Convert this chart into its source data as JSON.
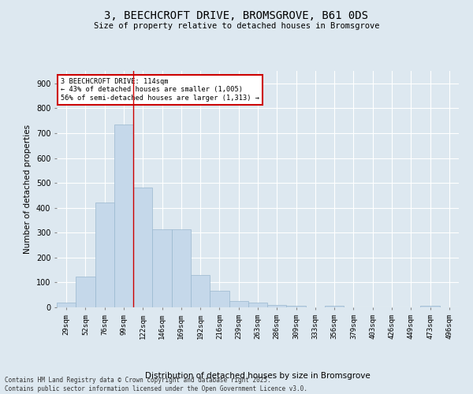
{
  "title_line1": "3, BEECHCROFT DRIVE, BROMSGROVE, B61 0DS",
  "title_line2": "Size of property relative to detached houses in Bromsgrove",
  "xlabel": "Distribution of detached houses by size in Bromsgrove",
  "ylabel": "Number of detached properties",
  "bar_color": "#c5d8ea",
  "bar_edge_color": "#9ab8cf",
  "bg_color": "#dde8f0",
  "fig_color": "#dde8f0",
  "grid_color": "#ffffff",
  "categories": [
    "29sqm",
    "52sqm",
    "76sqm",
    "99sqm",
    "122sqm",
    "146sqm",
    "169sqm",
    "192sqm",
    "216sqm",
    "239sqm",
    "263sqm",
    "286sqm",
    "309sqm",
    "333sqm",
    "356sqm",
    "379sqm",
    "403sqm",
    "426sqm",
    "449sqm",
    "473sqm",
    "496sqm"
  ],
  "values": [
    18,
    122,
    420,
    735,
    480,
    315,
    315,
    130,
    65,
    25,
    18,
    8,
    5,
    0,
    5,
    0,
    0,
    0,
    0,
    5,
    0
  ],
  "ylim": [
    0,
    950
  ],
  "yticks": [
    0,
    100,
    200,
    300,
    400,
    500,
    600,
    700,
    800,
    900
  ],
  "vline_x_idx": 3.5,
  "vline_color": "#cc0000",
  "annotation_text": "3 BEECHCROFT DRIVE: 114sqm\n← 43% of detached houses are smaller (1,005)\n56% of semi-detached houses are larger (1,313) →",
  "annotation_box_color": "#ffffff",
  "annotation_box_edge": "#cc0000",
  "footer_line1": "Contains HM Land Registry data © Crown copyright and database right 2025.",
  "footer_line2": "Contains public sector information licensed under the Open Government Licence v3.0."
}
